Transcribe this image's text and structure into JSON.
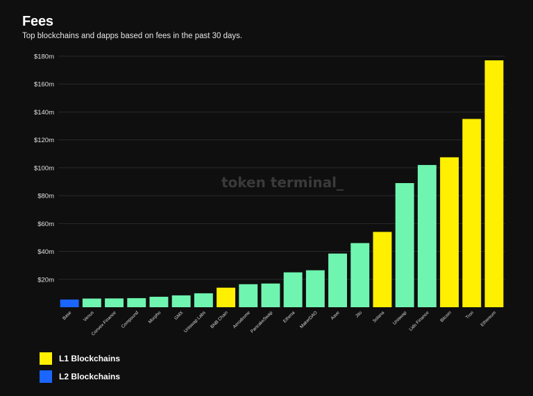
{
  "header": {
    "title": "Fees",
    "subtitle": "Top blockchains and dapps based on fees in the past 30 days."
  },
  "watermark": "token terminal_",
  "colors": {
    "l1": "#ffef00",
    "l2": "#1a66ff",
    "dapp": "#6ff5b0",
    "background": "#0f0f0f",
    "grid": "#2a2a2a"
  },
  "legend": {
    "items": [
      {
        "label": "L1 Blockchains",
        "color": "#ffef00"
      },
      {
        "label": "L2 Blockchains",
        "color": "#1a66ff"
      }
    ]
  },
  "chart_data": {
    "type": "bar",
    "title": "Fees",
    "xlabel": "",
    "ylabel": "",
    "ylim": [
      0,
      180
    ],
    "y_unit": "$m",
    "y_ticks": [
      20,
      40,
      60,
      80,
      100,
      120,
      140,
      160,
      180
    ],
    "y_tick_labels": [
      "$20m",
      "$40m",
      "$60m",
      "$80m",
      "$100m",
      "$120m",
      "$140m",
      "$160m",
      "$180m"
    ],
    "grid": true,
    "legend_position": "bottom-left",
    "categories": [
      "Base",
      "Venus",
      "Convex Finance",
      "Compound",
      "Morpho",
      "GMX",
      "Uniswap Labs",
      "BNB Chain",
      "Aerodrome",
      "PancakeSwap",
      "Ethena",
      "MakerDAO",
      "Aave",
      "Jito",
      "Solana",
      "Uniswap",
      "Lido Finance",
      "Bitcoin",
      "Tron",
      "Ethereum"
    ],
    "values": [
      5.5,
      6.2,
      6.3,
      6.5,
      7.5,
      8.5,
      10,
      14,
      16.5,
      17,
      25,
      26.5,
      38.5,
      46,
      54,
      89,
      102,
      107.5,
      135,
      177
    ],
    "groups": [
      "l2",
      "dapp",
      "dapp",
      "dapp",
      "dapp",
      "dapp",
      "dapp",
      "l1",
      "dapp",
      "dapp",
      "dapp",
      "dapp",
      "dapp",
      "dapp",
      "l1",
      "dapp",
      "dapp",
      "l1",
      "l1",
      "l1"
    ]
  }
}
